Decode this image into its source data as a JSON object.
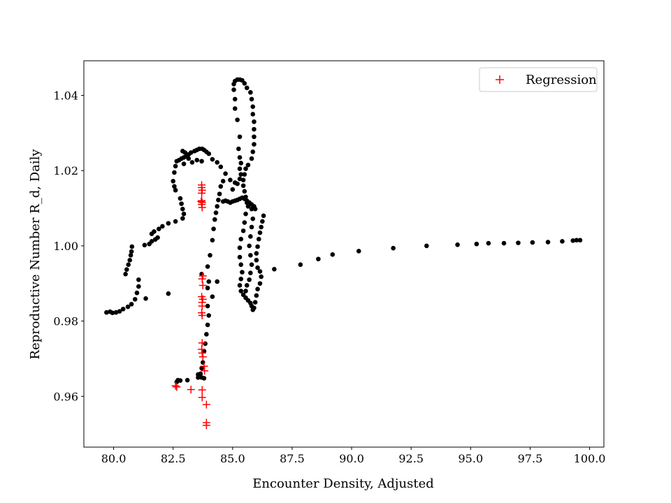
{
  "chart_data": {
    "type": "scatter",
    "xlabel": "Encounter Density, Adjusted",
    "ylabel": "Reproductive Number R_d, Daily",
    "xlim": [
      78.75,
      100.6
    ],
    "ylim": [
      0.9465,
      1.0492
    ],
    "xticks": [
      80.0,
      82.5,
      85.0,
      87.5,
      90.0,
      92.5,
      95.0,
      97.5,
      100.0
    ],
    "xtick_labels": [
      "80.0",
      "82.5",
      "85.0",
      "87.5",
      "90.0",
      "92.5",
      "95.0",
      "97.5",
      "100.0"
    ],
    "yticks": [
      0.96,
      0.98,
      1.0,
      1.02,
      1.04
    ],
    "ytick_labels": [
      "0.96",
      "0.98",
      "1.00",
      "1.02",
      "1.04"
    ],
    "grid": false,
    "legend": {
      "position": "top-right",
      "entries": [
        "Regression"
      ]
    },
    "series": [
      {
        "marker": "dot",
        "color": "#000000",
        "points": [
          [
            79.7,
            0.9823
          ],
          [
            79.85,
            0.9825
          ],
          [
            79.95,
            0.9822
          ],
          [
            80.1,
            0.9823
          ],
          [
            80.25,
            0.9826
          ],
          [
            80.4,
            0.9832
          ],
          [
            80.6,
            0.9838
          ],
          [
            80.75,
            0.9845
          ],
          [
            80.9,
            0.9858
          ],
          [
            80.98,
            0.9875
          ],
          [
            81.05,
            0.9892
          ],
          [
            81.05,
            0.991
          ],
          [
            80.5,
            0.9925
          ],
          [
            80.55,
            0.9937
          ],
          [
            80.62,
            0.995
          ],
          [
            80.68,
            0.9962
          ],
          [
            80.72,
            0.9975
          ],
          [
            80.75,
            0.9985
          ],
          [
            80.77,
            0.9998
          ],
          [
            81.3,
            1.0002
          ],
          [
            81.5,
            1.0005
          ],
          [
            81.6,
            1.0012
          ],
          [
            81.75,
            1.0017
          ],
          [
            81.85,
            1.0022
          ],
          [
            81.6,
            1.0032
          ],
          [
            81.7,
            1.0038
          ],
          [
            81.9,
            1.0045
          ],
          [
            82.05,
            1.0052
          ],
          [
            82.3,
            1.006
          ],
          [
            82.6,
            1.0065
          ],
          [
            82.9,
            1.0073
          ],
          [
            82.95,
            1.0085
          ],
          [
            82.9,
            1.0098
          ],
          [
            82.85,
            1.0112
          ],
          [
            82.8,
            1.0126
          ],
          [
            82.6,
            1.0148
          ],
          [
            82.55,
            1.0158
          ],
          [
            82.5,
            1.0172
          ],
          [
            82.55,
            1.0195
          ],
          [
            82.6,
            1.0212
          ],
          [
            82.65,
            1.0225
          ],
          [
            82.75,
            1.0228
          ],
          [
            82.85,
            1.0232
          ],
          [
            82.95,
            1.0235
          ],
          [
            83.05,
            1.0238
          ],
          [
            83.15,
            1.0243
          ],
          [
            83.25,
            1.0248
          ],
          [
            83.4,
            1.0252
          ],
          [
            83.5,
            1.0255
          ],
          [
            83.6,
            1.0258
          ],
          [
            83.72,
            1.0258
          ],
          [
            83.8,
            1.0255
          ],
          [
            83.9,
            1.025
          ],
          [
            82.9,
            1.0252
          ],
          [
            83.0,
            1.0248
          ],
          [
            83.15,
            1.0232
          ],
          [
            82.95,
            1.0218
          ],
          [
            83.3,
            1.0222
          ],
          [
            83.5,
            1.0228
          ],
          [
            83.7,
            1.0225
          ],
          [
            84.0,
            1.0245
          ],
          [
            84.15,
            1.023
          ],
          [
            84.35,
            1.0222
          ],
          [
            84.5,
            1.021
          ],
          [
            84.7,
            1.0192
          ],
          [
            84.9,
            1.0175
          ],
          [
            85.1,
            1.0168
          ],
          [
            84.6,
            1.0172
          ],
          [
            84.5,
            1.0158
          ],
          [
            84.45,
            1.0138
          ],
          [
            84.4,
            1.0122
          ],
          [
            84.35,
            1.0105
          ],
          [
            84.3,
            1.0088
          ],
          [
            84.25,
            1.007
          ],
          [
            84.2,
            1.0045
          ],
          [
            84.15,
            1.0015
          ],
          [
            84.05,
            0.9975
          ],
          [
            83.95,
            0.9945
          ],
          [
            83.7,
            0.9925
          ],
          [
            84.35,
            0.9905
          ],
          [
            84.0,
            0.9905
          ],
          [
            83.95,
            0.9888
          ],
          [
            84.15,
            0.9865
          ],
          [
            83.95,
            0.984
          ],
          [
            84.0,
            0.9815
          ],
          [
            83.95,
            0.979
          ],
          [
            83.9,
            0.9765
          ],
          [
            83.85,
            0.974
          ],
          [
            83.8,
            0.972
          ],
          [
            83.75,
            0.969
          ],
          [
            83.7,
            0.9675
          ],
          [
            83.65,
            0.966
          ],
          [
            83.6,
            0.9653
          ],
          [
            83.55,
            0.965
          ],
          [
            83.8,
            0.9648
          ],
          [
            83.7,
            0.965
          ],
          [
            83.55,
            0.9658
          ],
          [
            83.1,
            0.9643
          ],
          [
            82.8,
            0.9642
          ],
          [
            82.7,
            0.9643
          ],
          [
            82.65,
            0.9638
          ],
          [
            82.3,
            0.9873
          ],
          [
            81.35,
            0.986
          ],
          [
            84.6,
            1.0118
          ],
          [
            84.7,
            1.012
          ],
          [
            84.8,
            1.0118
          ],
          [
            84.9,
            1.0115
          ],
          [
            85.0,
            1.0118
          ],
          [
            85.1,
            1.012
          ],
          [
            85.2,
            1.0122
          ],
          [
            85.3,
            1.0125
          ],
          [
            85.4,
            1.0128
          ],
          [
            85.5,
            1.0125
          ],
          [
            85.6,
            1.012
          ],
          [
            85.7,
            1.0115
          ],
          [
            85.8,
            1.011
          ],
          [
            85.9,
            1.0105
          ],
          [
            85.95,
            1.0098
          ],
          [
            85.0,
            1.015
          ],
          [
            85.2,
            1.0165
          ],
          [
            85.3,
            1.0178
          ],
          [
            85.35,
            1.019
          ],
          [
            85.3,
            1.0205
          ],
          [
            85.35,
            1.022
          ],
          [
            85.3,
            1.0235
          ],
          [
            85.25,
            1.0258
          ],
          [
            85.3,
            1.029
          ],
          [
            85.2,
            1.0335
          ],
          [
            85.1,
            1.0365
          ],
          [
            85.1,
            1.039
          ],
          [
            85.05,
            1.0415
          ],
          [
            85.05,
            1.043
          ],
          [
            85.1,
            1.0438
          ],
          [
            85.2,
            1.0442
          ],
          [
            85.3,
            1.0442
          ],
          [
            85.4,
            1.044
          ],
          [
            85.5,
            1.0432
          ],
          [
            85.6,
            1.042
          ],
          [
            85.75,
            1.0408
          ],
          [
            85.8,
            1.039
          ],
          [
            85.85,
            1.037
          ],
          [
            85.85,
            1.035
          ],
          [
            85.9,
            1.033
          ],
          [
            85.9,
            1.031
          ],
          [
            85.9,
            1.029
          ],
          [
            85.9,
            1.027
          ],
          [
            85.85,
            1.025
          ],
          [
            85.8,
            1.0232
          ],
          [
            85.65,
            1.0215
          ],
          [
            85.55,
            1.0205
          ],
          [
            85.5,
            1.019
          ],
          [
            85.45,
            1.0175
          ],
          [
            85.45,
            1.016
          ],
          [
            85.5,
            1.0145
          ],
          [
            85.55,
            1.013
          ],
          [
            85.6,
            1.0115
          ],
          [
            85.65,
            1.0105
          ],
          [
            85.55,
            1.0085
          ],
          [
            85.5,
            1.0062
          ],
          [
            85.45,
            1.004
          ],
          [
            85.35,
            1.0018
          ],
          [
            85.3,
            0.9995
          ],
          [
            85.3,
            0.997
          ],
          [
            85.35,
            0.995
          ],
          [
            85.4,
            0.993
          ],
          [
            85.35,
            0.9912
          ],
          [
            85.3,
            0.9895
          ],
          [
            85.35,
            0.988
          ],
          [
            85.45,
            0.987
          ],
          [
            85.55,
            0.9862
          ],
          [
            85.65,
            0.9855
          ],
          [
            85.75,
            0.9848
          ],
          [
            85.8,
            0.984
          ],
          [
            85.85,
            0.983
          ],
          [
            85.8,
            1.0098
          ],
          [
            85.85,
            1.0072
          ],
          [
            85.8,
            1.005
          ],
          [
            85.75,
            1.0025
          ],
          [
            85.7,
            1.0
          ],
          [
            85.75,
            0.9975
          ],
          [
            85.8,
            0.995
          ],
          [
            85.75,
            0.9928
          ],
          [
            85.7,
            0.991
          ],
          [
            85.6,
            0.9895
          ],
          [
            85.55,
            0.988
          ],
          [
            86.3,
            1.008
          ],
          [
            86.25,
            1.0065
          ],
          [
            86.2,
            1.005
          ],
          [
            86.15,
            1.0035
          ],
          [
            86.1,
            1.0018
          ],
          [
            86.05,
            0.9998
          ],
          [
            86.0,
            0.998
          ],
          [
            86.0,
            0.9962
          ],
          [
            86.05,
            0.9942
          ],
          [
            86.15,
            0.9932
          ],
          [
            86.2,
            0.9918
          ],
          [
            86.15,
            0.99
          ],
          [
            86.05,
            0.9885
          ],
          [
            86.0,
            0.9868
          ],
          [
            85.95,
            0.985
          ],
          [
            85.9,
            0.9835
          ],
          [
            86.75,
            0.9938
          ],
          [
            87.85,
            0.995
          ],
          [
            88.6,
            0.9965
          ],
          [
            89.2,
            0.9977
          ],
          [
            90.3,
            0.9986
          ],
          [
            91.75,
            0.9994
          ],
          [
            93.15,
            1.0
          ],
          [
            94.45,
            1.0003
          ],
          [
            95.25,
            1.0005
          ],
          [
            95.75,
            1.0007
          ],
          [
            96.4,
            1.0007
          ],
          [
            97.0,
            1.0008
          ],
          [
            97.6,
            1.0009
          ],
          [
            98.25,
            1.001
          ],
          [
            98.85,
            1.0012
          ],
          [
            99.3,
            1.0014
          ],
          [
            99.45,
            1.0015
          ],
          [
            99.6,
            1.0015
          ]
        ]
      },
      {
        "name": "Regression",
        "marker": "plus",
        "color": "#ff0000",
        "points": [
          [
            83.7,
            1.0162
          ],
          [
            83.7,
            1.0155
          ],
          [
            83.72,
            1.0148
          ],
          [
            83.7,
            1.014
          ],
          [
            83.7,
            1.012
          ],
          [
            83.72,
            1.0115
          ],
          [
            83.68,
            1.0118
          ],
          [
            83.7,
            1.011
          ],
          [
            83.72,
            1.0102
          ],
          [
            83.75,
            0.992
          ],
          [
            83.72,
            0.9912
          ],
          [
            83.75,
            0.9895
          ],
          [
            83.7,
            0.9865
          ],
          [
            83.75,
            0.9858
          ],
          [
            83.72,
            0.985
          ],
          [
            83.72,
            0.984
          ],
          [
            83.7,
            0.9822
          ],
          [
            83.72,
            0.9815
          ],
          [
            83.72,
            0.9742
          ],
          [
            83.7,
            0.9725
          ],
          [
            83.72,
            0.9715
          ],
          [
            83.75,
            0.9705
          ],
          [
            83.8,
            0.968
          ],
          [
            83.82,
            0.9668
          ],
          [
            82.6,
            0.9628
          ],
          [
            82.65,
            0.9625
          ],
          [
            83.25,
            0.9618
          ],
          [
            83.72,
            0.9617
          ],
          [
            83.72,
            0.9597
          ],
          [
            83.9,
            0.9578
          ],
          [
            83.9,
            0.953
          ],
          [
            83.9,
            0.9523
          ]
        ]
      }
    ]
  }
}
